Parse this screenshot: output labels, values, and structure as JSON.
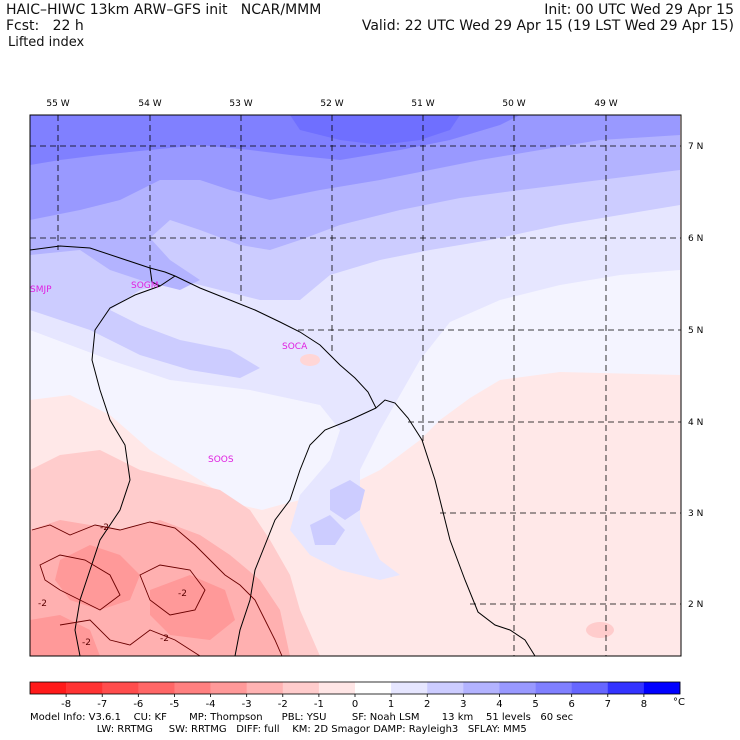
{
  "header": {
    "line1_left": "HAIC–HIWC 13km ARW–GFS init   NCAR/MMM",
    "line2_left": "Fcst:   22 h",
    "line3_left": "Lifted index",
    "line1_right": "Init: 00 UTC Wed 29 Apr 15",
    "line2_right": "Valid: 22 UTC Wed 29 Apr 15 (19 LST Wed 29 Apr 15)"
  },
  "axes": {
    "longitude_labels": [
      "55 W",
      "54 W",
      "53 W",
      "52 W",
      "51 W",
      "50 W",
      "49 W"
    ],
    "latitude_labels": [
      "7 N",
      "6 N",
      "5 N",
      "4 N",
      "3 N",
      "2 N"
    ]
  },
  "stations": [
    "SMJP",
    "SOGM",
    "SOCA",
    "SOOS"
  ],
  "contour_labels": [
    "-2",
    "-2",
    "-2",
    "-2",
    "-2"
  ],
  "colorbar": {
    "ticks": [
      "-8",
      "-7",
      "-6",
      "-5",
      "-4",
      "-3",
      "-2",
      "-1",
      "0",
      "1",
      "2",
      "3",
      "4",
      "5",
      "6",
      "7",
      "8"
    ],
    "unit": "°C",
    "colors": [
      "#ff1a1a",
      "#ff3333",
      "#ff4d4d",
      "#ff6666",
      "#ff8080",
      "#ff9999",
      "#ffb3b3",
      "#ffcccc",
      "#ffe6e6",
      "#ffffff",
      "#e6e6ff",
      "#ccccff",
      "#b3b3ff",
      "#9999ff",
      "#8080ff",
      "#6666ff",
      "#3333ff",
      "#0000ff"
    ]
  },
  "footer": {
    "line1": "Model Info: V3.6.1    CU: KF       MP: Thompson      PBL: YSU        SF: Noah LSM       13 km    51 levels   60 sec",
    "line2": "                     LW: RRTMG     SW: RRTMG   DIFF: full    KM: 2D Smagor DAMP: Rayleigh3   SFLAY: MM5"
  }
}
